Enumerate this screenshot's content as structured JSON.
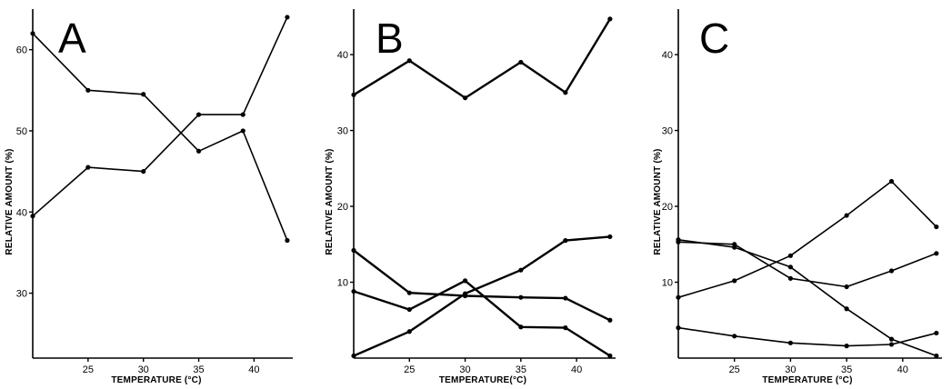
{
  "chart_data": [
    {
      "type": "line",
      "title": "A",
      "xlabel": "TEMPERATURE (°C)",
      "ylabel": "RELATIVE AMOUNT (%)",
      "xlim": [
        20,
        43.5
      ],
      "ylim": [
        22,
        65
      ],
      "xticks": [
        25,
        30,
        35,
        40
      ],
      "yticks": [
        30,
        40,
        50,
        60
      ],
      "series": [
        {
          "values": [
            [
              20,
              62
            ],
            [
              25,
              55
            ],
            [
              30,
              54.5
            ],
            [
              35,
              47.5
            ],
            [
              39,
              50
            ],
            [
              43,
              36.5
            ]
          ]
        },
        {
          "values": [
            [
              20,
              39.5
            ],
            [
              25,
              45.5
            ],
            [
              30,
              45
            ],
            [
              35,
              52
            ],
            [
              39,
              52
            ],
            [
              43,
              64
            ]
          ]
        }
      ]
    },
    {
      "type": "line",
      "title": "B",
      "xlabel": "TEMPERATURE(°C)",
      "ylabel": "RELATIVE AMOUNT (%)",
      "xlim": [
        20,
        43.5
      ],
      "ylim": [
        0,
        46
      ],
      "xticks": [
        25,
        30,
        35,
        40
      ],
      "yticks": [
        10,
        20,
        30,
        40
      ],
      "series": [
        {
          "values": [
            [
              20,
              34.7
            ],
            [
              25,
              39.2
            ],
            [
              30,
              34.3
            ],
            [
              35,
              39
            ],
            [
              39,
              35
            ],
            [
              43,
              44.7
            ]
          ]
        },
        {
          "values": [
            [
              20,
              14.2
            ],
            [
              25,
              8.6
            ],
            [
              30,
              8.2
            ],
            [
              35,
              8
            ],
            [
              39,
              7.9
            ],
            [
              43,
              5
            ]
          ]
        },
        {
          "values": [
            [
              20,
              8.8
            ],
            [
              25,
              6.4
            ],
            [
              30,
              10.2
            ],
            [
              35,
              4.1
            ],
            [
              39,
              4
            ],
            [
              43,
              0.3
            ]
          ]
        },
        {
          "values": [
            [
              20,
              0.3
            ],
            [
              25,
              3.5
            ],
            [
              30,
              8.5
            ],
            [
              35,
              11.6
            ],
            [
              39,
              15.5
            ],
            [
              43,
              16
            ]
          ]
        }
      ]
    },
    {
      "type": "line",
      "title": "C",
      "xlabel": "TEMPERATURE (°C)",
      "ylabel": "RELATIVE AMOUNT (%)",
      "xlim": [
        20,
        43.5
      ],
      "ylim": [
        0,
        46
      ],
      "xticks": [
        25,
        30,
        35,
        40
      ],
      "yticks": [
        10,
        20,
        30,
        40
      ],
      "series": [
        {
          "values": [
            [
              20,
              8
            ],
            [
              25,
              10.2
            ],
            [
              30,
              13.5
            ],
            [
              35,
              18.8
            ],
            [
              39,
              23.3
            ],
            [
              43,
              17.3
            ]
          ]
        },
        {
          "values": [
            [
              20,
              15.6
            ],
            [
              25,
              14.6
            ],
            [
              30,
              12
            ],
            [
              35,
              6.5
            ],
            [
              39,
              2.5
            ],
            [
              43,
              0.3
            ]
          ]
        },
        {
          "values": [
            [
              20,
              15.3
            ],
            [
              25,
              15
            ],
            [
              30,
              10.5
            ],
            [
              35,
              9.4
            ],
            [
              39,
              11.5
            ],
            [
              43,
              13.8
            ]
          ]
        },
        {
          "values": [
            [
              20,
              4
            ],
            [
              25,
              2.9
            ],
            [
              30,
              2
            ],
            [
              35,
              1.6
            ],
            [
              39,
              1.8
            ],
            [
              43,
              3.3
            ]
          ]
        }
      ]
    }
  ]
}
